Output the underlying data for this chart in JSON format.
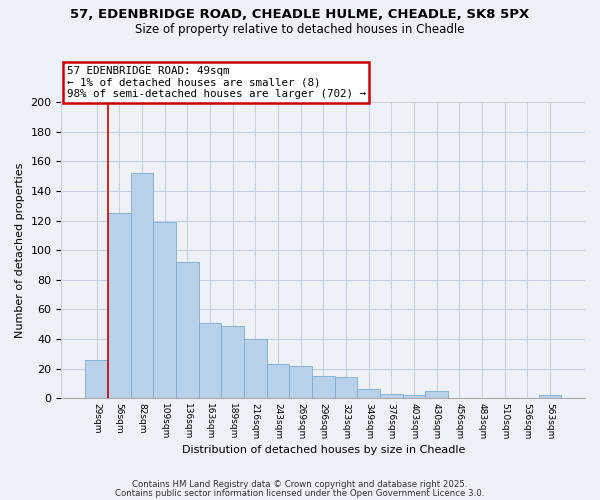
{
  "title1": "57, EDENBRIDGE ROAD, CHEADLE HULME, CHEADLE, SK8 5PX",
  "title2": "Size of property relative to detached houses in Cheadle",
  "xlabel": "Distribution of detached houses by size in Cheadle",
  "ylabel": "Number of detached properties",
  "categories": [
    "29sqm",
    "56sqm",
    "82sqm",
    "109sqm",
    "136sqm",
    "163sqm",
    "189sqm",
    "216sqm",
    "243sqm",
    "269sqm",
    "296sqm",
    "323sqm",
    "349sqm",
    "376sqm",
    "403sqm",
    "430sqm",
    "456sqm",
    "483sqm",
    "510sqm",
    "536sqm",
    "563sqm"
  ],
  "values": [
    26,
    125,
    152,
    119,
    92,
    51,
    49,
    40,
    23,
    22,
    15,
    14,
    6,
    3,
    2,
    5,
    0,
    0,
    0,
    0,
    2
  ],
  "bar_color": "#b8d0ea",
  "bar_edge_color": "#7aadd4",
  "annotation_title": "57 EDENBRIDGE ROAD: 49sqm",
  "annotation_line1": "← 1% of detached houses are smaller (8)",
  "annotation_line2": "98% of semi-detached houses are larger (702) →",
  "annotation_box_color": "#cc0000",
  "vline_color": "#cc0000",
  "ylim_max": 200,
  "yticks": [
    0,
    20,
    40,
    60,
    80,
    100,
    120,
    140,
    160,
    180,
    200
  ],
  "footer1": "Contains HM Land Registry data © Crown copyright and database right 2025.",
  "footer2": "Contains public sector information licensed under the Open Government Licence 3.0.",
  "bg_color": "#eef2f8",
  "grid_color": "#c8d0e8"
}
